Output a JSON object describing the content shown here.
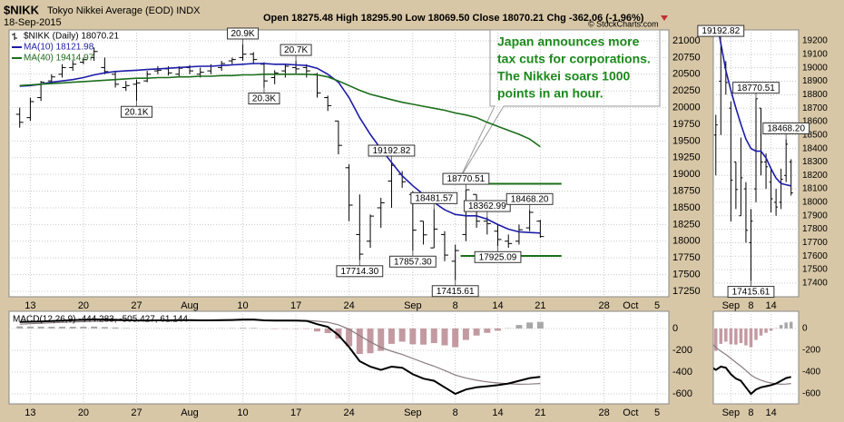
{
  "chart_data": [
    {
      "type": "ohlc",
      "title": "$NIKK",
      "subtitle": "Tokyo Nikkei Average (EOD) INDX",
      "date": "18-Sep-2015",
      "quote": "Open 18275.48 High 18295.90 Low 18069.50 Close 18070.21 Chg -362.06 (-1.96%)",
      "credit": "© StockCharts.com",
      "price_name": "$NIKK (Daily) 18070.21",
      "color": "#000000",
      "xlim": [
        -1,
        61.1
      ],
      "xticks": [
        {
          "value": 1,
          "label": "13"
        },
        {
          "value": 6,
          "label": "20"
        },
        {
          "value": 11,
          "label": "27"
        },
        {
          "value": 16,
          "label": "Aug"
        },
        {
          "value": 21,
          "label": "10"
        },
        {
          "value": 26,
          "label": "17"
        },
        {
          "value": 31,
          "label": "24"
        },
        {
          "value": 37,
          "label": "Sep"
        },
        {
          "value": 41,
          "label": "8"
        },
        {
          "value": 45,
          "label": "14"
        },
        {
          "value": 49,
          "label": "21"
        },
        {
          "value": 55,
          "label": "28"
        },
        {
          "value": 57.5,
          "label": "Oct"
        },
        {
          "value": 60,
          "label": "5"
        }
      ],
      "ylim": [
        17168,
        21163
      ],
      "yticks": [
        17250,
        17500,
        17750,
        18000,
        18250,
        18500,
        18750,
        19000,
        19250,
        19500,
        19750,
        20000,
        20250,
        20500,
        20750,
        21000
      ],
      "grid": true,
      "open": [
        19900,
        19850,
        20150,
        20400,
        20500,
        20600,
        20680,
        20750,
        20600,
        20500,
        20300,
        20350,
        20400,
        20550,
        20580,
        20500,
        20600,
        20500,
        20550,
        20600,
        20700,
        20750,
        20800,
        20650,
        20450,
        20550,
        20600,
        20600,
        20500,
        20150,
        19800,
        19100,
        18100,
        18000,
        18500,
        18900,
        19000,
        18700,
        18300,
        17900,
        18100,
        17700,
        18100,
        18700,
        18300,
        18150,
        18000,
        18000,
        18200,
        18300
      ],
      "high": [
        20000,
        20150,
        20400,
        20500,
        20650,
        20700,
        20750,
        20900,
        20750,
        20550,
        20400,
        20420,
        20550,
        20620,
        20620,
        20620,
        20640,
        20600,
        20650,
        20700,
        20750,
        20946,
        20830,
        20680,
        20560,
        20650,
        20700,
        20650,
        20520,
        20180,
        19800,
        19150,
        18700,
        18400,
        18650,
        19192.82,
        19050,
        18750,
        18300,
        18481.57,
        18150,
        17950,
        18770.51,
        18700,
        18362.99,
        18250,
        18100,
        18250,
        18468.2,
        18320
      ],
      "low": [
        19700,
        19800,
        20100,
        20350,
        20450,
        20550,
        20650,
        20700,
        20500,
        20300,
        20250,
        20100,
        20380,
        20500,
        20480,
        20450,
        20500,
        20450,
        20500,
        20550,
        20650,
        20700,
        20650,
        20300,
        20350,
        20450,
        20500,
        20450,
        20150,
        19950,
        19300,
        18300,
        17714.3,
        17900,
        18200,
        18500,
        18800,
        17857.3,
        17950,
        17900,
        17700,
        17415.61,
        18000,
        18200,
        18100,
        17925.09,
        17900,
        17950,
        18150,
        18050
      ],
      "close": [
        19780,
        20090,
        20380,
        20460,
        20600,
        20650,
        20720,
        20840,
        20540,
        20350,
        20330,
        20370,
        20500,
        20560,
        20520,
        20590,
        20550,
        20530,
        20620,
        20660,
        20720,
        20800,
        20720,
        20400,
        20520,
        20620,
        20580,
        20550,
        20220,
        20030,
        19435,
        18540,
        17806,
        18376,
        18575,
        19136,
        18890,
        18165,
        18095,
        18182,
        17792,
        17860,
        18770,
        18299,
        18264,
        18026,
        17965,
        18171,
        18432,
        18070
      ],
      "series": [
        {
          "name": "MA(10) 18121.98",
          "color": "#1c1ca8",
          "values": [
            20320,
            20330,
            20350,
            20380,
            20400,
            20420,
            20450,
            20490,
            20520,
            20540,
            20550,
            20560,
            20570,
            20580,
            20590,
            20600,
            20610,
            20620,
            20620,
            20630,
            20640,
            20650,
            20660,
            20660,
            20650,
            20650,
            20640,
            20630,
            20590,
            20500,
            20380,
            20150,
            19850,
            19600,
            19380,
            19180,
            18980,
            18830,
            18700,
            18580,
            18470,
            18400,
            18380,
            18380,
            18330,
            18250,
            18180,
            18140,
            18130,
            18121.98
          ]
        },
        {
          "name": "MA(40) 19414.97",
          "color": "#1c6e1c",
          "values": [
            20330,
            20340,
            20350,
            20360,
            20370,
            20380,
            20390,
            20400,
            20410,
            20420,
            20430,
            20440,
            20440,
            20450,
            20450,
            20460,
            20460,
            20470,
            20470,
            20480,
            20480,
            20490,
            20490,
            20500,
            20500,
            20500,
            20500,
            20500,
            20490,
            20460,
            20400,
            20330,
            20260,
            20200,
            20160,
            20120,
            20080,
            20050,
            20020,
            19990,
            19960,
            19920,
            19890,
            19850,
            19780,
            19720,
            19660,
            19600,
            19530,
            19414.97
          ]
        }
      ],
      "annotations": [
        {
          "x": 21,
          "value": 20946,
          "label": "20.9K"
        },
        {
          "x": 26,
          "value": 20700,
          "label": "20.7K"
        },
        {
          "x": 23,
          "value": 20300,
          "label": "20.3K"
        },
        {
          "x": 11,
          "value": 20100,
          "label": "20.1K"
        },
        {
          "x": 35,
          "value": 19192.82,
          "label": "19192.82"
        },
        {
          "x": 32,
          "value": 17714.3,
          "label": "17714.30"
        },
        {
          "x": 39,
          "value": 18481.57,
          "label": "18481.57"
        },
        {
          "x": 37,
          "value": 17857.3,
          "label": "17857.30"
        },
        {
          "x": 41,
          "value": 17415.61,
          "label": "17415.61"
        },
        {
          "x": 42,
          "value": 18770.51,
          "label": "18770.51"
        },
        {
          "x": 44,
          "value": 18362.99,
          "label": "18362.99"
        },
        {
          "x": 45,
          "value": 17925.09,
          "label": "17925.09"
        },
        {
          "x": 48,
          "value": 18468.2,
          "label": "18468.20"
        }
      ],
      "levels": [
        {
          "value": 18860,
          "x": [
            41.5,
            51
          ]
        },
        {
          "value": 17780,
          "x": [
            41.5,
            51
          ]
        }
      ],
      "level_color": "#1c6e1c",
      "callout": [
        "Japan announces more",
        "tax cuts for corporations.",
        "The Nikkei soars 1000",
        "points in an hour."
      ],
      "callout_color": "#1c8a1c"
    },
    {
      "type": "ohlc-zoom",
      "xlim": [
        33.5,
        50.5
      ],
      "xticks": [
        {
          "value": 37,
          "label": "Sep"
        },
        {
          "value": 41,
          "label": "8"
        },
        {
          "value": 45,
          "label": "14"
        }
      ],
      "ylim": [
        17298,
        19281
      ],
      "yticks": [
        17400,
        17500,
        17600,
        17700,
        17800,
        17900,
        18000,
        18100,
        18200,
        18300,
        18400,
        18500,
        18600,
        18700,
        18800,
        18900,
        19000,
        19100,
        19200
      ],
      "grid": true,
      "annotations": [
        {
          "x": 35,
          "value": 19192.82,
          "label": "19192.82"
        },
        {
          "x": 42,
          "value": 18770.51,
          "label": "18770.51"
        },
        {
          "x": 48,
          "value": 18468.2,
          "label": "18468.20"
        },
        {
          "x": 41,
          "value": 17415.61,
          "label": "17415.61"
        }
      ]
    },
    {
      "type": "macd",
      "title": "MACD(12,26,9) -444.283, -505.427, 61.144",
      "ylim": [
        -692,
        158
      ],
      "yticks": [
        0,
        -200,
        -400,
        -600
      ],
      "grid": true,
      "macd": {
        "color": "#000000",
        "values": [
          60,
          62,
          65,
          68,
          72,
          76,
          80,
          84,
          82,
          80,
          76,
          74,
          74,
          75,
          75,
          76,
          76,
          75,
          75,
          76,
          78,
          82,
          82,
          75,
          72,
          73,
          72,
          70,
          40,
          15,
          -60,
          -170,
          -300,
          -350,
          -380,
          -350,
          -360,
          -420,
          -460,
          -480,
          -540,
          -600,
          -560,
          -540,
          -530,
          -520,
          -505,
          -480,
          -455,
          -444.283
        ]
      },
      "signal": {
        "color": "#8a7a7e",
        "values": [
          40,
          44,
          48,
          52,
          56,
          60,
          63,
          66,
          69,
          71,
          72,
          73,
          73,
          73,
          73,
          74,
          74,
          74,
          74,
          74,
          75,
          76,
          77,
          77,
          76,
          76,
          75,
          74,
          67,
          57,
          34,
          -7,
          -66,
          -123,
          -174,
          -209,
          -239,
          -275,
          -312,
          -346,
          -385,
          -428,
          -455,
          -475,
          -490,
          -500,
          -508,
          -512,
          -510,
          -505.427
        ]
      },
      "histogram": {
        "color": "#c49aa2",
        "positive_color": "#a8a8a8",
        "values": [
          20,
          18,
          17,
          16,
          16,
          16,
          17,
          18,
          13,
          9,
          4,
          1,
          1,
          2,
          2,
          2,
          2,
          1,
          1,
          2,
          3,
          6,
          5,
          -2,
          -4,
          -3,
          -3,
          -4,
          -27,
          -42,
          -94,
          -163,
          -234,
          -227,
          -206,
          -141,
          -121,
          -145,
          -148,
          -134,
          -155,
          -172,
          -105,
          -65,
          -40,
          -20,
          3,
          32,
          55,
          61.144
        ]
      }
    },
    {
      "type": "macd-zoom",
      "ylim": [
        -692,
        158
      ],
      "yticks": [
        0,
        -200,
        -400,
        -600
      ],
      "grid": true
    }
  ]
}
